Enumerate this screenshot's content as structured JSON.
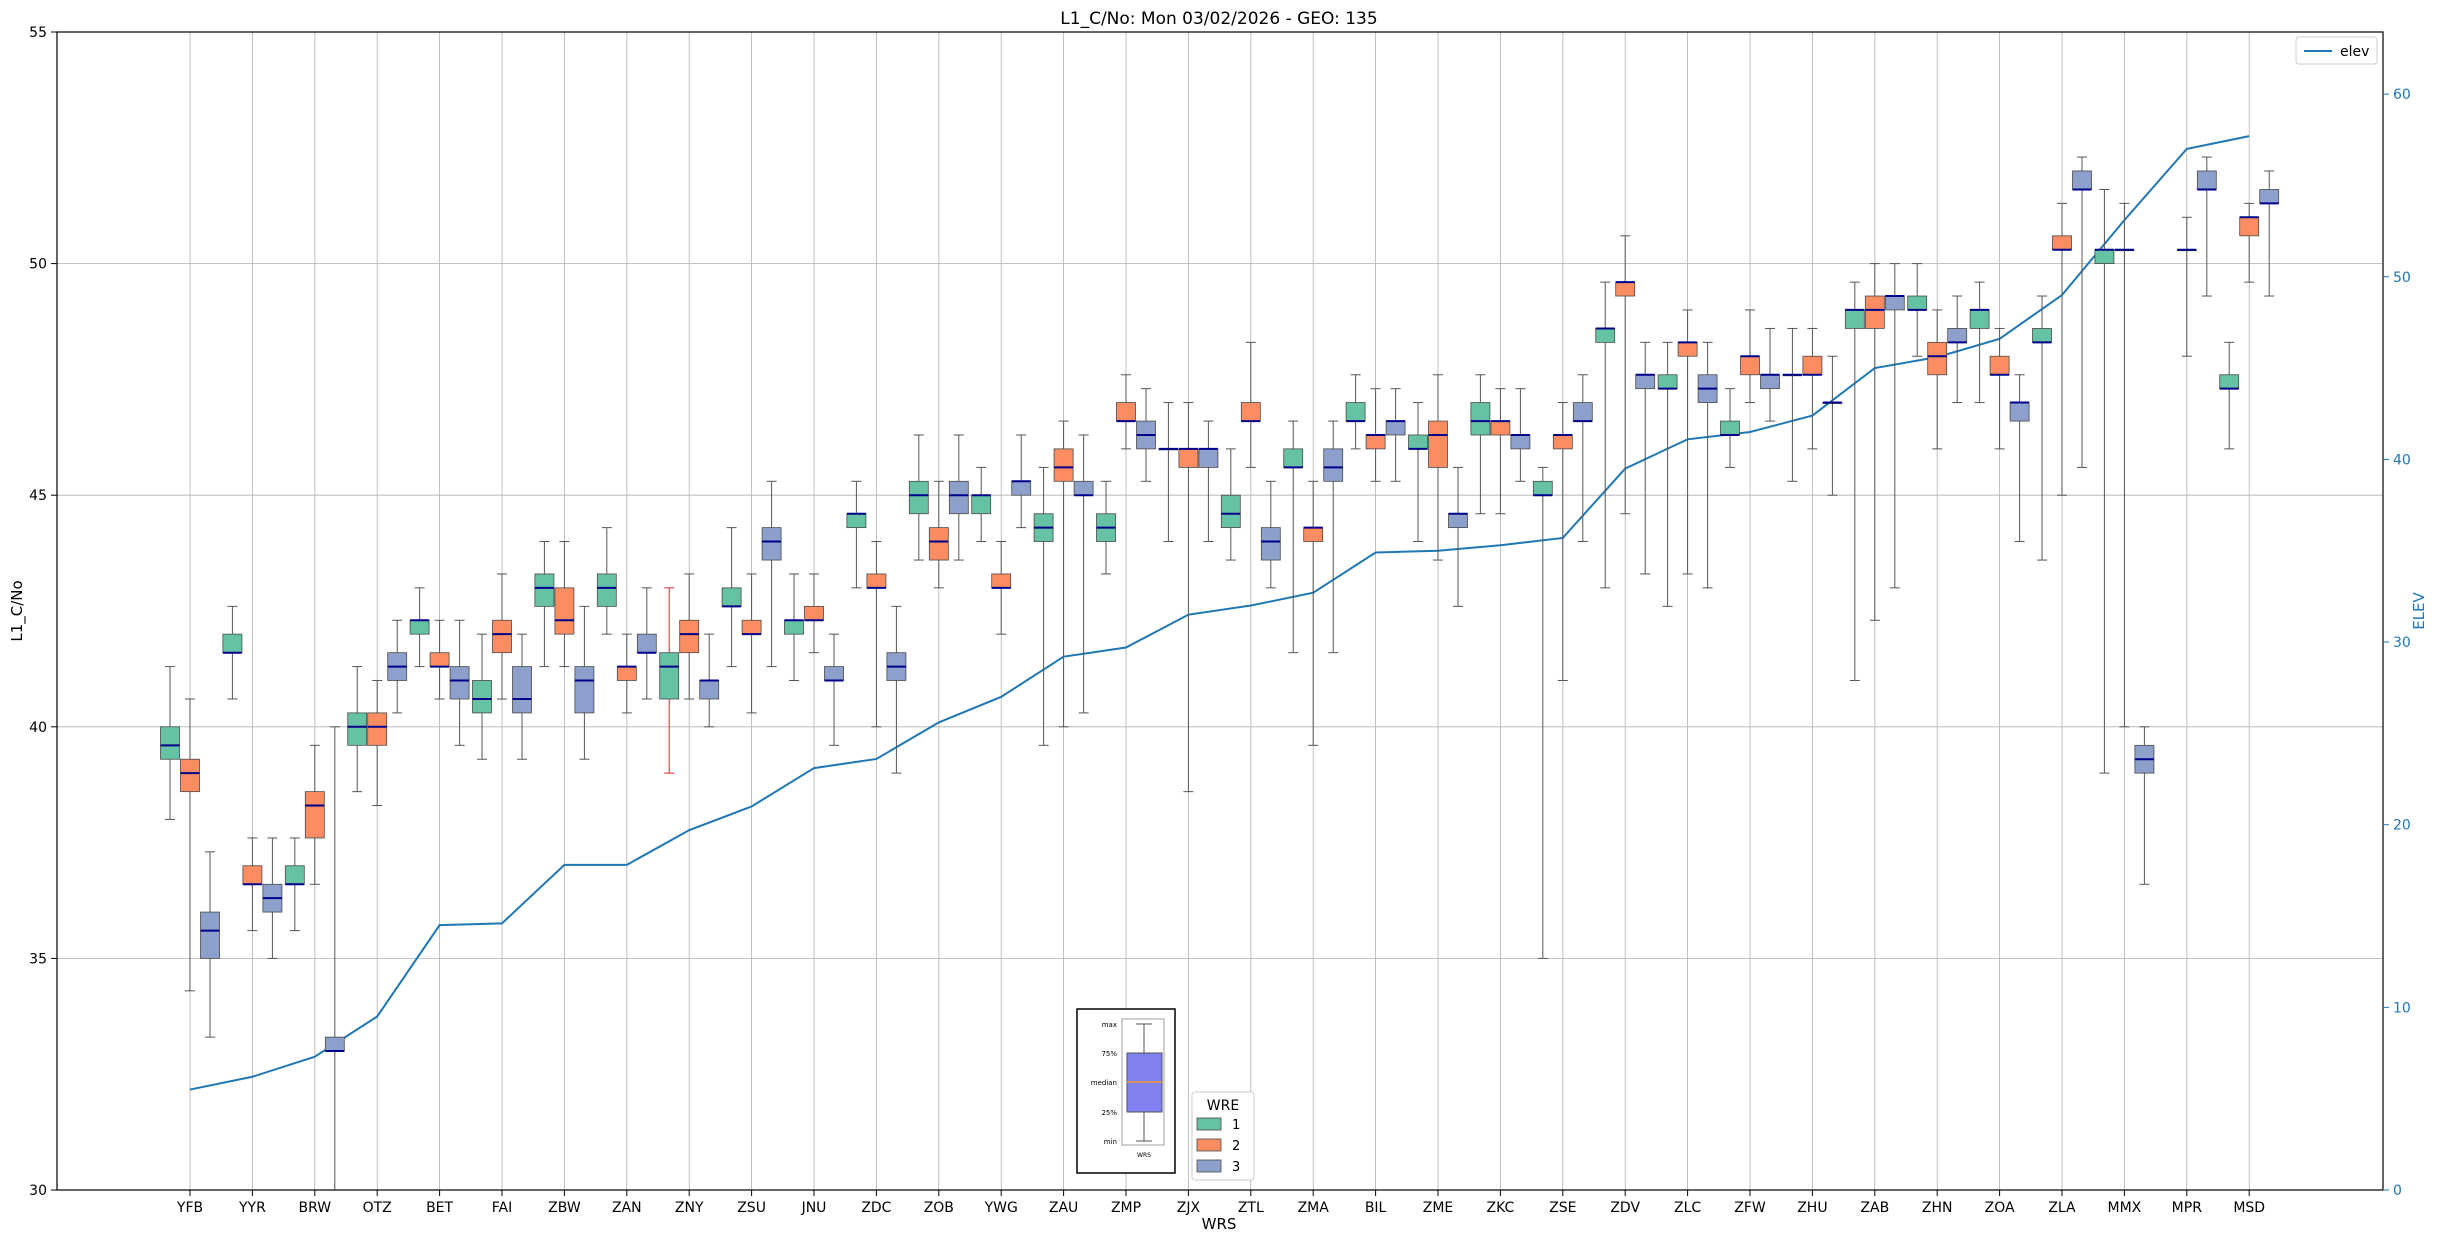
{
  "chart_data": {
    "type": "box",
    "title": "L1_C/No: Mon 03/02/2026 - GEO: 135",
    "xlabel": "WRS",
    "ylabel": "L1_C/No",
    "ylabel_right": "ELEV",
    "ylim": [
      30,
      55
    ],
    "ylim_right": [
      0,
      63.4
    ],
    "yticks": [
      30,
      35,
      40,
      45,
      50,
      55
    ],
    "yticks_right": [
      0,
      10,
      20,
      30,
      40,
      50,
      60
    ],
    "grid": true,
    "categories": [
      "YFB",
      "YYR",
      "BRW",
      "OTZ",
      "BET",
      "FAI",
      "ZBW",
      "ZAN",
      "ZNY",
      "ZSU",
      "JNU",
      "ZDC",
      "ZOB",
      "YWG",
      "ZAU",
      "ZMP",
      "ZJX",
      "ZTL",
      "ZMA",
      "BIL",
      "ZME",
      "ZKC",
      "ZSE",
      "ZDV",
      "ZLC",
      "ZFW",
      "ZHU",
      "ZAB",
      "ZHN",
      "ZOA",
      "ZLA",
      "MMX",
      "MPR",
      "MSD"
    ],
    "wre_legend_title": "WRE",
    "wre_series": [
      {
        "name": "1",
        "color": "#66c2a5"
      },
      {
        "name": "2",
        "color": "#fc8d62"
      },
      {
        "name": "3",
        "color": "#8da0cb"
      }
    ],
    "line_series": {
      "name": "elev",
      "color": "#1f77b4",
      "values": [
        5.5,
        6.2,
        7.3,
        9.5,
        14.5,
        14.6,
        17.8,
        17.8,
        19.7,
        21.0,
        23.1,
        23.6,
        25.6,
        27.0,
        29.2,
        29.7,
        31.5,
        32.0,
        32.7,
        34.9,
        35.0,
        35.3,
        35.7,
        39.5,
        41.1,
        41.5,
        42.4,
        45.0,
        45.6,
        46.6,
        49.0,
        53.1,
        57.0,
        57.7
      ]
    },
    "boxes": [
      {
        "cat": "YFB",
        "wre": 1,
        "min": 38.0,
        "q1": 39.3,
        "med": 39.6,
        "q3": 40.0,
        "max": 41.3
      },
      {
        "cat": "YFB",
        "wre": 2,
        "min": 34.3,
        "q1": 38.6,
        "med": 39.0,
        "q3": 39.3,
        "max": 40.6
      },
      {
        "cat": "YFB",
        "wre": 3,
        "min": 33.3,
        "q1": 35.0,
        "med": 35.6,
        "q3": 36.0,
        "max": 37.3
      },
      {
        "cat": "YYR",
        "wre": 1,
        "min": 40.6,
        "q1": 41.6,
        "med": 41.6,
        "q3": 42.0,
        "max": 42.6
      },
      {
        "cat": "YYR",
        "wre": 2,
        "min": 35.6,
        "q1": 36.6,
        "med": 36.6,
        "q3": 37.0,
        "max": 37.6
      },
      {
        "cat": "YYR",
        "wre": 3,
        "min": 35.0,
        "q1": 36.0,
        "med": 36.3,
        "q3": 36.6,
        "max": 37.6
      },
      {
        "cat": "BRW",
        "wre": 1,
        "min": 35.6,
        "q1": 36.6,
        "med": 36.6,
        "q3": 37.0,
        "max": 37.6
      },
      {
        "cat": "BRW",
        "wre": 2,
        "min": 36.6,
        "q1": 37.6,
        "med": 38.3,
        "q3": 38.6,
        "max": 39.6
      },
      {
        "cat": "BRW",
        "wre": 3,
        "min": 30.0,
        "q1": 33.0,
        "med": 33.0,
        "q3": 33.3,
        "max": 40.0
      },
      {
        "cat": "OTZ",
        "wre": 1,
        "min": 38.6,
        "q1": 39.6,
        "med": 40.0,
        "q3": 40.3,
        "max": 41.3
      },
      {
        "cat": "OTZ",
        "wre": 2,
        "min": 38.3,
        "q1": 39.6,
        "med": 40.0,
        "q3": 40.3,
        "max": 41.0
      },
      {
        "cat": "OTZ",
        "wre": 3,
        "min": 40.3,
        "q1": 41.0,
        "med": 41.3,
        "q3": 41.6,
        "max": 42.3
      },
      {
        "cat": "BET",
        "wre": 1,
        "min": 41.3,
        "q1": 42.0,
        "med": 42.3,
        "q3": 42.3,
        "max": 43.0
      },
      {
        "cat": "BET",
        "wre": 2,
        "min": 40.6,
        "q1": 41.3,
        "med": 41.3,
        "q3": 41.6,
        "max": 42.3
      },
      {
        "cat": "BET",
        "wre": 3,
        "min": 39.6,
        "q1": 40.6,
        "med": 41.0,
        "q3": 41.3,
        "max": 42.3
      },
      {
        "cat": "FAI",
        "wre": 1,
        "min": 39.3,
        "q1": 40.3,
        "med": 40.6,
        "q3": 41.0,
        "max": 42.0
      },
      {
        "cat": "FAI",
        "wre": 2,
        "min": 40.6,
        "q1": 41.6,
        "med": 42.0,
        "q3": 42.3,
        "max": 43.3
      },
      {
        "cat": "FAI",
        "wre": 3,
        "min": 39.3,
        "q1": 40.3,
        "med": 40.6,
        "q3": 41.3,
        "max": 42.0
      },
      {
        "cat": "ZBW",
        "wre": 1,
        "min": 41.3,
        "q1": 42.6,
        "med": 43.0,
        "q3": 43.3,
        "max": 44.0
      },
      {
        "cat": "ZBW",
        "wre": 2,
        "min": 41.3,
        "q1": 42.0,
        "med": 42.3,
        "q3": 43.0,
        "max": 44.0
      },
      {
        "cat": "ZBW",
        "wre": 3,
        "min": 39.3,
        "q1": 40.3,
        "med": 41.0,
        "q3": 41.3,
        "max": 42.6
      },
      {
        "cat": "ZAN",
        "wre": 1,
        "min": 42.0,
        "q1": 42.6,
        "med": 43.0,
        "q3": 43.3,
        "max": 44.3
      },
      {
        "cat": "ZAN",
        "wre": 2,
        "min": 40.3,
        "q1": 41.0,
        "med": 41.3,
        "q3": 41.3,
        "max": 42.0
      },
      {
        "cat": "ZAN",
        "wre": 3,
        "min": 40.6,
        "q1": 41.6,
        "med": 41.6,
        "q3": 42.0,
        "max": 43.0
      },
      {
        "cat": "ZNY",
        "wre": 1,
        "min": 39.0,
        "q1": 40.6,
        "med": 41.3,
        "q3": 41.6,
        "max": 43.0,
        "whisker_color": "#d62728"
      },
      {
        "cat": "ZNY",
        "wre": 2,
        "min": 40.6,
        "q1": 41.6,
        "med": 42.0,
        "q3": 42.3,
        "max": 43.3
      },
      {
        "cat": "ZNY",
        "wre": 3,
        "min": 40.0,
        "q1": 40.6,
        "med": 41.0,
        "q3": 41.0,
        "max": 42.0
      },
      {
        "cat": "ZSU",
        "wre": 1,
        "min": 41.3,
        "q1": 42.6,
        "med": 42.6,
        "q3": 43.0,
        "max": 44.3
      },
      {
        "cat": "ZSU",
        "wre": 2,
        "min": 40.3,
        "q1": 42.0,
        "med": 42.0,
        "q3": 42.3,
        "max": 43.3
      },
      {
        "cat": "ZSU",
        "wre": 3,
        "min": 41.3,
        "q1": 43.6,
        "med": 44.0,
        "q3": 44.3,
        "max": 45.3
      },
      {
        "cat": "JNU",
        "wre": 1,
        "min": 41.0,
        "q1": 42.0,
        "med": 42.3,
        "q3": 42.3,
        "max": 43.3
      },
      {
        "cat": "JNU",
        "wre": 2,
        "min": 41.6,
        "q1": 42.3,
        "med": 42.3,
        "q3": 42.6,
        "max": 43.3
      },
      {
        "cat": "JNU",
        "wre": 3,
        "min": 39.6,
        "q1": 41.0,
        "med": 41.0,
        "q3": 41.3,
        "max": 42.0
      },
      {
        "cat": "ZDC",
        "wre": 1,
        "min": 43.0,
        "q1": 44.3,
        "med": 44.6,
        "q3": 44.6,
        "max": 45.3
      },
      {
        "cat": "ZDC",
        "wre": 2,
        "min": 40.0,
        "q1": 43.0,
        "med": 43.0,
        "q3": 43.3,
        "max": 44.0
      },
      {
        "cat": "ZDC",
        "wre": 3,
        "min": 39.0,
        "q1": 41.0,
        "med": 41.3,
        "q3": 41.6,
        "max": 42.6
      },
      {
        "cat": "ZOB",
        "wre": 1,
        "min": 43.6,
        "q1": 44.6,
        "med": 45.0,
        "q3": 45.3,
        "max": 46.3
      },
      {
        "cat": "ZOB",
        "wre": 2,
        "min": 43.0,
        "q1": 43.6,
        "med": 44.0,
        "q3": 44.3,
        "max": 45.3
      },
      {
        "cat": "ZOB",
        "wre": 3,
        "min": 43.6,
        "q1": 44.6,
        "med": 45.0,
        "q3": 45.3,
        "max": 46.3
      },
      {
        "cat": "YWG",
        "wre": 1,
        "min": 44.0,
        "q1": 44.6,
        "med": 45.0,
        "q3": 45.0,
        "max": 45.6
      },
      {
        "cat": "YWG",
        "wre": 2,
        "min": 42.0,
        "q1": 43.0,
        "med": 43.0,
        "q3": 43.3,
        "max": 44.0
      },
      {
        "cat": "YWG",
        "wre": 3,
        "min": 44.3,
        "q1": 45.0,
        "med": 45.3,
        "q3": 45.3,
        "max": 46.3
      },
      {
        "cat": "ZAU",
        "wre": 1,
        "min": 39.6,
        "q1": 44.0,
        "med": 44.3,
        "q3": 44.6,
        "max": 45.6
      },
      {
        "cat": "ZAU",
        "wre": 2,
        "min": 40.0,
        "q1": 45.3,
        "med": 45.6,
        "q3": 46.0,
        "max": 46.6
      },
      {
        "cat": "ZAU",
        "wre": 3,
        "min": 40.3,
        "q1": 45.0,
        "med": 45.0,
        "q3": 45.3,
        "max": 46.3
      },
      {
        "cat": "ZMP",
        "wre": 1,
        "min": 43.3,
        "q1": 44.0,
        "med": 44.3,
        "q3": 44.6,
        "max": 45.3
      },
      {
        "cat": "ZMP",
        "wre": 2,
        "min": 46.0,
        "q1": 46.6,
        "med": 46.6,
        "q3": 47.0,
        "max": 47.6
      },
      {
        "cat": "ZMP",
        "wre": 3,
        "min": 45.3,
        "q1": 46.0,
        "med": 46.3,
        "q3": 46.6,
        "max": 47.3
      },
      {
        "cat": "ZJX",
        "wre": 1,
        "min": 44.0,
        "q1": 46.0,
        "med": 46.0,
        "q3": 46.0,
        "max": 47.0
      },
      {
        "cat": "ZJX",
        "wre": 2,
        "min": 38.6,
        "q1": 45.6,
        "med": 46.0,
        "q3": 46.0,
        "max": 47.0
      },
      {
        "cat": "ZJX",
        "wre": 3,
        "min": 44.0,
        "q1": 45.6,
        "med": 46.0,
        "q3": 46.0,
        "max": 46.6
      },
      {
        "cat": "ZTL",
        "wre": 1,
        "min": 43.6,
        "q1": 44.3,
        "med": 44.6,
        "q3": 45.0,
        "max": 46.0
      },
      {
        "cat": "ZTL",
        "wre": 2,
        "min": 45.6,
        "q1": 46.6,
        "med": 46.6,
        "q3": 47.0,
        "max": 48.3
      },
      {
        "cat": "ZTL",
        "wre": 3,
        "min": 43.0,
        "q1": 43.6,
        "med": 44.0,
        "q3": 44.3,
        "max": 45.3
      },
      {
        "cat": "ZMA",
        "wre": 1,
        "min": 41.6,
        "q1": 45.6,
        "med": 45.6,
        "q3": 46.0,
        "max": 46.6
      },
      {
        "cat": "ZMA",
        "wre": 2,
        "min": 39.6,
        "q1": 44.0,
        "med": 44.3,
        "q3": 44.3,
        "max": 45.3
      },
      {
        "cat": "ZMA",
        "wre": 3,
        "min": 41.6,
        "q1": 45.3,
        "med": 45.6,
        "q3": 46.0,
        "max": 46.6
      },
      {
        "cat": "BIL",
        "wre": 1,
        "min": 46.0,
        "q1": 46.6,
        "med": 46.6,
        "q3": 47.0,
        "max": 47.6
      },
      {
        "cat": "BIL",
        "wre": 2,
        "min": 45.3,
        "q1": 46.0,
        "med": 46.3,
        "q3": 46.3,
        "max": 47.3
      },
      {
        "cat": "BIL",
        "wre": 3,
        "min": 45.3,
        "q1": 46.3,
        "med": 46.6,
        "q3": 46.6,
        "max": 47.3
      },
      {
        "cat": "ZME",
        "wre": 1,
        "min": 44.0,
        "q1": 46.0,
        "med": 46.0,
        "q3": 46.3,
        "max": 47.0
      },
      {
        "cat": "ZME",
        "wre": 2,
        "min": 43.6,
        "q1": 45.6,
        "med": 46.3,
        "q3": 46.6,
        "max": 47.6
      },
      {
        "cat": "ZME",
        "wre": 3,
        "min": 42.6,
        "q1": 44.3,
        "med": 44.6,
        "q3": 44.6,
        "max": 45.6
      },
      {
        "cat": "ZKC",
        "wre": 1,
        "min": 44.6,
        "q1": 46.3,
        "med": 46.6,
        "q3": 47.0,
        "max": 47.6
      },
      {
        "cat": "ZKC",
        "wre": 2,
        "min": 44.6,
        "q1": 46.3,
        "med": 46.6,
        "q3": 46.6,
        "max": 47.3
      },
      {
        "cat": "ZKC",
        "wre": 3,
        "min": 45.3,
        "q1": 46.0,
        "med": 46.3,
        "q3": 46.3,
        "max": 47.3
      },
      {
        "cat": "ZSE",
        "wre": 1,
        "min": 35.0,
        "q1": 45.0,
        "med": 45.0,
        "q3": 45.3,
        "max": 45.6
      },
      {
        "cat": "ZSE",
        "wre": 2,
        "min": 41.0,
        "q1": 46.0,
        "med": 46.3,
        "q3": 46.3,
        "max": 47.0
      },
      {
        "cat": "ZSE",
        "wre": 3,
        "min": 44.0,
        "q1": 46.6,
        "med": 46.6,
        "q3": 47.0,
        "max": 47.6
      },
      {
        "cat": "ZDV",
        "wre": 1,
        "min": 43.0,
        "q1": 48.3,
        "med": 48.6,
        "q3": 48.6,
        "max": 49.6
      },
      {
        "cat": "ZDV",
        "wre": 2,
        "min": 44.6,
        "q1": 49.3,
        "med": 49.6,
        "q3": 49.6,
        "max": 50.6
      },
      {
        "cat": "ZDV",
        "wre": 3,
        "min": 43.3,
        "q1": 47.3,
        "med": 47.6,
        "q3": 47.6,
        "max": 48.3
      },
      {
        "cat": "ZLC",
        "wre": 1,
        "min": 42.6,
        "q1": 47.3,
        "med": 47.3,
        "q3": 47.6,
        "max": 48.3
      },
      {
        "cat": "ZLC",
        "wre": 2,
        "min": 43.3,
        "q1": 48.0,
        "med": 48.3,
        "q3": 48.3,
        "max": 49.0
      },
      {
        "cat": "ZLC",
        "wre": 3,
        "min": 43.0,
        "q1": 47.0,
        "med": 47.3,
        "q3": 47.6,
        "max": 48.3
      },
      {
        "cat": "ZFW",
        "wre": 1,
        "min": 45.6,
        "q1": 46.3,
        "med": 46.3,
        "q3": 46.6,
        "max": 47.3
      },
      {
        "cat": "ZFW",
        "wre": 2,
        "min": 47.0,
        "q1": 47.6,
        "med": 48.0,
        "q3": 48.0,
        "max": 49.0
      },
      {
        "cat": "ZFW",
        "wre": 3,
        "min": 46.6,
        "q1": 47.3,
        "med": 47.6,
        "q3": 47.6,
        "max": 48.6
      },
      {
        "cat": "ZHU",
        "wre": 1,
        "min": 45.3,
        "q1": 47.6,
        "med": 47.6,
        "q3": 47.6,
        "max": 48.6
      },
      {
        "cat": "ZHU",
        "wre": 2,
        "min": 46.0,
        "q1": 47.6,
        "med": 47.6,
        "q3": 48.0,
        "max": 48.6
      },
      {
        "cat": "ZHU",
        "wre": 3,
        "min": 45.0,
        "q1": 47.0,
        "med": 47.0,
        "q3": 47.0,
        "max": 48.0
      },
      {
        "cat": "ZAB",
        "wre": 1,
        "min": 41.0,
        "q1": 48.6,
        "med": 49.0,
        "q3": 49.0,
        "max": 49.6
      },
      {
        "cat": "ZAB",
        "wre": 2,
        "min": 42.3,
        "q1": 48.6,
        "med": 49.0,
        "q3": 49.3,
        "max": 50.0
      },
      {
        "cat": "ZAB",
        "wre": 3,
        "min": 43.0,
        "q1": 49.0,
        "med": 49.3,
        "q3": 49.3,
        "max": 50.0
      },
      {
        "cat": "ZHN",
        "wre": 1,
        "min": 48.0,
        "q1": 49.0,
        "med": 49.0,
        "q3": 49.3,
        "max": 50.0
      },
      {
        "cat": "ZHN",
        "wre": 2,
        "min": 46.0,
        "q1": 47.6,
        "med": 48.0,
        "q3": 48.3,
        "max": 49.0
      },
      {
        "cat": "ZHN",
        "wre": 3,
        "min": 47.0,
        "q1": 48.3,
        "med": 48.3,
        "q3": 48.6,
        "max": 49.3
      },
      {
        "cat": "ZOA",
        "wre": 1,
        "min": 47.0,
        "q1": 48.6,
        "med": 49.0,
        "q3": 49.0,
        "max": 49.6
      },
      {
        "cat": "ZOA",
        "wre": 2,
        "min": 46.0,
        "q1": 47.6,
        "med": 47.6,
        "q3": 48.0,
        "max": 48.6
      },
      {
        "cat": "ZOA",
        "wre": 3,
        "min": 44.0,
        "q1": 46.6,
        "med": 47.0,
        "q3": 47.0,
        "max": 47.6
      },
      {
        "cat": "ZLA",
        "wre": 1,
        "min": 43.6,
        "q1": 48.3,
        "med": 48.3,
        "q3": 48.6,
        "max": 49.3
      },
      {
        "cat": "ZLA",
        "wre": 2,
        "min": 45.0,
        "q1": 50.3,
        "med": 50.3,
        "q3": 50.6,
        "max": 51.3
      },
      {
        "cat": "ZLA",
        "wre": 3,
        "min": 45.6,
        "q1": 51.6,
        "med": 51.6,
        "q3": 52.0,
        "max": 52.3
      },
      {
        "cat": "MMX",
        "wre": 1,
        "min": 39.0,
        "q1": 50.0,
        "med": 50.3,
        "q3": 50.3,
        "max": 51.6
      },
      {
        "cat": "MMX",
        "wre": 2,
        "min": 40.0,
        "q1": 50.3,
        "med": 50.3,
        "q3": 50.3,
        "max": 51.3
      },
      {
        "cat": "MMX",
        "wre": 3,
        "min": 36.6,
        "q1": 39.0,
        "med": 39.3,
        "q3": 39.6,
        "max": 40.0
      },
      {
        "cat": "MPR",
        "wre": 2,
        "min": 48.0,
        "q1": 50.3,
        "med": 50.3,
        "q3": 50.3,
        "max": 51.0
      },
      {
        "cat": "MPR",
        "wre": 3,
        "min": 49.3,
        "q1": 51.6,
        "med": 51.6,
        "q3": 52.0,
        "max": 52.3
      },
      {
        "cat": "MSD",
        "wre": 1,
        "min": 46.0,
        "q1": 47.3,
        "med": 47.3,
        "q3": 47.6,
        "max": 48.3
      },
      {
        "cat": "MSD",
        "wre": 2,
        "min": 49.6,
        "q1": 50.6,
        "med": 51.0,
        "q3": 51.0,
        "max": 51.3
      },
      {
        "cat": "MSD",
        "wre": 3,
        "min": 49.3,
        "q1": 51.3,
        "med": 51.3,
        "q3": 51.6,
        "max": 52.0
      }
    ],
    "box_legend": {
      "labels": [
        "max",
        "75%",
        "median",
        "25%",
        "min"
      ],
      "axis_label": "WRS"
    }
  }
}
